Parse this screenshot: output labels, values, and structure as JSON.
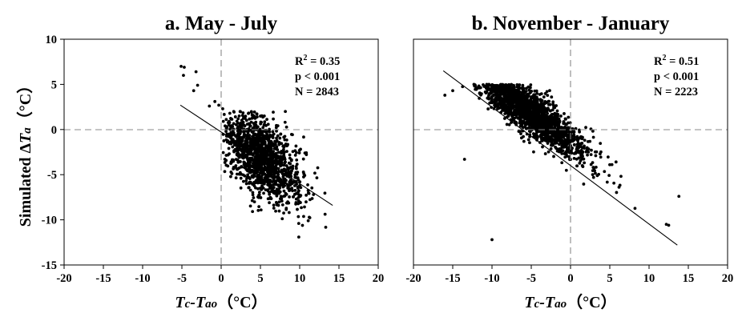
{
  "chart_data": [
    {
      "type": "scatter",
      "title": "a. May - July",
      "ylabel_parts": [
        "Simulated ",
        "Δ",
        "T",
        "a",
        "（°C）"
      ],
      "xlabel_parts": [
        "T",
        "c",
        "-",
        "T",
        "ao",
        "（°C）"
      ],
      "xlim": [
        -20,
        20
      ],
      "ylim": [
        -15,
        10
      ],
      "xticks": [
        -20,
        -15,
        -10,
        -5,
        0,
        5,
        10,
        15,
        20
      ],
      "yticks": [
        10,
        5,
        0,
        -5,
        -10,
        -15
      ],
      "reference_lines": {
        "x": 0,
        "y": 0
      },
      "fit_line": {
        "x": [
          -5.2,
          14.2
        ],
        "y": [
          2.7,
          -8.4
        ]
      },
      "stats": {
        "r2_prefix": "R",
        "r2_sup": "2",
        "r2_value": " = 0.35",
        "p": "p < 0.001",
        "n": "N = 2843"
      },
      "outliers": [
        [
          -5.1,
          7.0
        ],
        [
          -4.7,
          6.9
        ],
        [
          -4.8,
          6.0
        ],
        [
          -3.2,
          6.4
        ],
        [
          -3.5,
          4.3
        ],
        [
          -3.0,
          4.9
        ],
        [
          -1.5,
          2.6
        ],
        [
          -0.8,
          3.1
        ],
        [
          -0.3,
          2.7
        ],
        [
          0.2,
          2.3
        ],
        [
          1.6,
          2.0
        ],
        [
          2.3,
          1.5
        ],
        [
          1.0,
          0.9
        ],
        [
          0.5,
          0.4
        ]
      ],
      "cloud": {
        "n": 1300,
        "x_min": 0.2,
        "x_max": 14.5,
        "x_center": 5.2,
        "x_sd": 2.6,
        "slope": -0.57,
        "intercept": -0.2,
        "y_sd": 2.2,
        "y_min": -13.2,
        "y_max": 2.0
      },
      "grid": false
    },
    {
      "type": "scatter",
      "title": "b. November - January",
      "xlabel_parts": [
        "T",
        "c",
        "-",
        "T",
        "ao",
        "（°C）"
      ],
      "xlim": [
        -20,
        20
      ],
      "ylim": [
        -15,
        10
      ],
      "xticks": [
        -20,
        -15,
        -10,
        -5,
        0,
        5,
        10,
        15,
        20
      ],
      "reference_lines": {
        "x": 0,
        "y": 0
      },
      "fit_line": {
        "x": [
          -16.2,
          13.6
        ],
        "y": [
          6.5,
          -12.8
        ]
      },
      "stats": {
        "r2_prefix": "R",
        "r2_sup": "2",
        "r2_value": " = 0.51",
        "p": "p < 0.001",
        "n": "N = 2223"
      },
      "outliers": [
        [
          -16.0,
          3.8
        ],
        [
          -15.0,
          4.3
        ],
        [
          -10.0,
          -12.2
        ],
        [
          12.2,
          -10.5
        ],
        [
          12.5,
          -10.6
        ],
        [
          13.8,
          -7.4
        ],
        [
          -13.5,
          -3.3
        ]
      ],
      "cloud": {
        "n": 1900,
        "x_min": -14.5,
        "x_max": 11.0,
        "x_center": -5.5,
        "x_sd": 3.8,
        "slope": -0.62,
        "intercept": -1.3,
        "y_sd": 1.2,
        "y_min": -13.0,
        "y_max": 5.0
      },
      "grid": false
    }
  ]
}
